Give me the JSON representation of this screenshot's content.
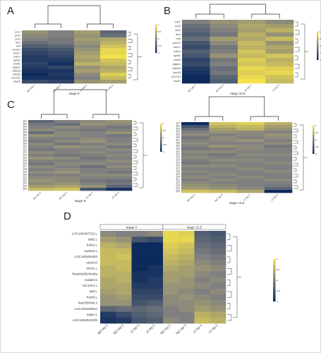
{
  "panels": [
    {
      "id": "A",
      "label": "A",
      "stage": "stage 9",
      "columns": [
        "MZ rep 1",
        "MZ rep 2",
        "rZ rep 1",
        "rZ rep 2"
      ],
      "rows": [
        "pcv1",
        "pcv2",
        "sox3",
        "tbx4",
        "elf4",
        "col18.2",
        "dnr3.1",
        "mdk.b",
        "kpnb1",
        "chrnt1",
        "ptgss1",
        "cdkn2a",
        "ube2l3",
        "LOC101",
        "ube2x"
      ],
      "values": [
        [
          0.2,
          0.0,
          0.3,
          -0.3
        ],
        [
          0.1,
          0.0,
          0.2,
          -0.2
        ],
        [
          0.0,
          -0.1,
          0.3,
          0.4
        ],
        [
          -0.2,
          -0.1,
          0.2,
          0.5
        ],
        [
          -0.4,
          -0.3,
          0.1,
          0.7
        ],
        [
          -0.6,
          -0.5,
          0.2,
          0.9
        ],
        [
          -0.7,
          -0.6,
          0.3,
          0.9
        ],
        [
          -0.8,
          -0.7,
          0.4,
          1.0
        ],
        [
          -0.8,
          -0.8,
          0.3,
          0.7
        ],
        [
          -0.7,
          -0.9,
          0.5,
          0.6
        ],
        [
          -0.8,
          -0.7,
          0.2,
          0.4
        ],
        [
          -0.9,
          -0.9,
          0.3,
          0.5
        ],
        [
          -1.0,
          -0.8,
          0.1,
          0.8
        ],
        [
          -0.9,
          -0.9,
          0.0,
          0.6
        ],
        [
          -0.6,
          -0.7,
          0.2,
          0.3
        ]
      ]
    },
    {
      "id": "B",
      "label": "B",
      "stage": "stage 10.5",
      "columns": [
        "MZ rep 1",
        "MZ rep 2",
        "rZ rep 1",
        "rZ rep 2"
      ],
      "rows": [
        "pcv1",
        "pcv2",
        "sox3",
        "tbx4",
        "elf4",
        "col18.2",
        "dnr3.1",
        "mdk.b",
        "kpnb1",
        "chrnt1",
        "ptgss1",
        "cdkn2a",
        "ube2l3",
        "LOC101",
        "ube2x"
      ],
      "values": [
        [
          0.0,
          0.2,
          0.3,
          0.1
        ],
        [
          -0.2,
          0.1,
          0.4,
          0.3
        ],
        [
          -0.3,
          0.0,
          0.3,
          0.5
        ],
        [
          -0.4,
          -0.1,
          0.5,
          0.2
        ],
        [
          -0.2,
          0.3,
          0.4,
          0.6
        ],
        [
          -0.5,
          0.1,
          0.6,
          0.2
        ],
        [
          -0.6,
          -0.1,
          0.5,
          0.4
        ],
        [
          -0.4,
          0.0,
          0.7,
          0.3
        ],
        [
          -0.5,
          0.2,
          0.6,
          0.7
        ],
        [
          -0.7,
          -0.1,
          0.8,
          0.5
        ],
        [
          -0.6,
          0.0,
          0.7,
          0.6
        ],
        [
          -0.8,
          -0.2,
          0.9,
          0.8
        ],
        [
          -0.9,
          -0.1,
          0.8,
          0.9
        ],
        [
          -1.0,
          -0.3,
          0.9,
          0.7
        ],
        [
          -1.0,
          -0.4,
          1.0,
          0.6
        ]
      ]
    },
    {
      "id": "C1",
      "label": "C",
      "stage": "stage 9",
      "columns": [
        "MZ rep 1",
        "MZ rep 2",
        "rZ rep 1",
        "rZ rep 2"
      ],
      "rows": [
        "g01",
        "g02",
        "g03",
        "g04",
        "g05",
        "g06",
        "g07",
        "g08",
        "g09",
        "g10",
        "g11",
        "g12",
        "g13",
        "g14",
        "g15",
        "g16",
        "g17",
        "g18",
        "g19",
        "g20",
        "g21",
        "g22",
        "g23",
        "g24",
        "g25"
      ],
      "values": [
        [
          -0.3,
          0.0,
          0.1,
          0.2
        ],
        [
          -0.1,
          -0.2,
          0.2,
          0.1
        ],
        [
          0.0,
          0.1,
          0.0,
          -0.1
        ],
        [
          0.1,
          0.0,
          -0.1,
          0.0
        ],
        [
          -0.2,
          0.1,
          0.0,
          0.2
        ],
        [
          0.2,
          0.1,
          0.0,
          -0.1
        ],
        [
          0.0,
          0.0,
          0.1,
          0.0
        ],
        [
          -0.1,
          0.1,
          0.2,
          0.0
        ],
        [
          0.1,
          -0.1,
          0.0,
          0.1
        ],
        [
          0.0,
          0.2,
          0.1,
          -0.1
        ],
        [
          -0.1,
          0.0,
          0.0,
          0.1
        ],
        [
          0.1,
          0.0,
          0.1,
          0.0
        ],
        [
          0.0,
          -0.1,
          0.0,
          0.1
        ],
        [
          0.2,
          0.1,
          -0.1,
          0.0
        ],
        [
          0.0,
          0.0,
          0.0,
          0.1
        ],
        [
          -0.1,
          0.1,
          0.1,
          0.0
        ],
        [
          0.1,
          0.0,
          -0.2,
          0.1
        ],
        [
          0.0,
          0.1,
          0.0,
          0.0
        ],
        [
          0.1,
          0.2,
          0.0,
          -0.1
        ],
        [
          0.0,
          0.0,
          0.1,
          0.1
        ],
        [
          0.1,
          0.1,
          0.0,
          0.0
        ],
        [
          0.2,
          0.1,
          -0.1,
          -0.2
        ],
        [
          0.1,
          0.2,
          0.0,
          -0.1
        ],
        [
          0.3,
          0.4,
          0.2,
          -0.3
        ],
        [
          0.6,
          0.7,
          -0.5,
          -0.9
        ]
      ]
    },
    {
      "id": "C2",
      "label": "",
      "stage": "stage 10.5",
      "columns": [
        "MZ rep 1",
        "MZ rep 2",
        "rZ rep 1",
        "rZ rep 2"
      ],
      "rows": [
        "g01",
        "g02",
        "g03",
        "g04",
        "g05",
        "g06",
        "g07",
        "g08",
        "g09",
        "g10",
        "g11",
        "g12",
        "g13",
        "g14",
        "g15",
        "g16",
        "g17",
        "g18",
        "g19",
        "g20",
        "g21",
        "g22",
        "g23",
        "g24",
        "g25"
      ],
      "values": [
        [
          -1.0,
          0.7,
          0.8,
          0.5
        ],
        [
          -0.5,
          0.5,
          0.6,
          0.3
        ],
        [
          -0.2,
          0.3,
          0.5,
          0.2
        ],
        [
          0.0,
          0.2,
          0.1,
          0.0
        ],
        [
          0.1,
          0.0,
          0.1,
          0.2
        ],
        [
          -0.1,
          0.1,
          0.0,
          0.1
        ],
        [
          0.0,
          0.1,
          0.2,
          0.0
        ],
        [
          0.1,
          0.0,
          0.0,
          0.1
        ],
        [
          0.0,
          0.2,
          0.1,
          -0.1
        ],
        [
          -0.1,
          0.0,
          0.1,
          0.0
        ],
        [
          0.1,
          0.1,
          0.0,
          0.0
        ],
        [
          0.0,
          -0.1,
          0.1,
          0.1
        ],
        [
          0.1,
          0.0,
          0.0,
          0.0
        ],
        [
          0.0,
          0.1,
          0.1,
          0.0
        ],
        [
          -0.1,
          0.0,
          0.0,
          0.1
        ],
        [
          0.1,
          0.1,
          0.0,
          0.0
        ],
        [
          0.0,
          0.0,
          0.1,
          0.0
        ],
        [
          0.1,
          0.0,
          0.0,
          0.1
        ],
        [
          0.0,
          0.1,
          0.0,
          0.0
        ],
        [
          0.1,
          0.0,
          0.1,
          0.0
        ],
        [
          0.0,
          0.1,
          0.0,
          0.1
        ],
        [
          0.1,
          0.0,
          0.0,
          0.0
        ],
        [
          0.2,
          0.1,
          0.0,
          -0.1
        ],
        [
          0.3,
          0.2,
          0.1,
          -0.3
        ],
        [
          0.7,
          0.6,
          0.4,
          -1.0
        ]
      ]
    },
    {
      "id": "D",
      "label": "D",
      "stages": [
        "stage 9",
        "stage 10.5"
      ],
      "columns": [
        "MZ rep 1",
        "MZ rep 2",
        "rZ rep 1",
        "rZ rep 2",
        "MZ rep 1",
        "MZ rep 2",
        "rZ rep 1",
        "rZ rep 2"
      ],
      "rows": [
        "LOC100497722.L",
        "sall1.L",
        "foxh1.L",
        "ncpb2a.L",
        "LOC100491003",
        "otx1b.S",
        "dmrt1.L",
        "foxa4/sall1/wnt3a",
        "nodal3.S",
        "Xnr1/2/4.L",
        "sp5.L",
        "foxd3.L",
        "hes/1/b/ckb.2",
        "LOC100493944",
        "mpp1.L",
        "LOC100491003b"
      ],
      "values": [
        [
          0.1,
          0.0,
          0.0,
          0.1,
          0.9,
          0.8,
          -0.4,
          -0.5
        ],
        [
          0.3,
          0.2,
          -0.5,
          -0.6,
          0.9,
          0.9,
          -0.3,
          -0.4
        ],
        [
          0.5,
          0.4,
          -1.0,
          -1.0,
          0.8,
          0.7,
          -0.2,
          -0.3
        ],
        [
          0.6,
          0.6,
          -1.0,
          -1.0,
          0.7,
          0.6,
          -0.1,
          -0.2
        ],
        [
          0.6,
          0.7,
          -1.0,
          -1.0,
          0.6,
          0.5,
          0.0,
          -0.1
        ],
        [
          0.6,
          0.6,
          -1.0,
          -1.0,
          0.5,
          0.4,
          0.1,
          0.0
        ],
        [
          0.5,
          0.6,
          -1.0,
          -0.9,
          0.4,
          0.3,
          0.2,
          0.1
        ],
        [
          0.5,
          0.5,
          -0.9,
          -0.9,
          0.3,
          0.3,
          0.1,
          0.0
        ],
        [
          0.4,
          0.5,
          -0.9,
          -0.8,
          0.3,
          0.2,
          0.0,
          0.1
        ],
        [
          0.4,
          0.4,
          -0.8,
          -0.8,
          0.2,
          0.2,
          0.1,
          0.0
        ],
        [
          0.3,
          0.4,
          -0.7,
          -0.7,
          0.2,
          0.1,
          0.0,
          0.1
        ],
        [
          0.2,
          0.3,
          -0.6,
          -0.6,
          0.1,
          0.2,
          0.1,
          0.0
        ],
        [
          0.2,
          0.2,
          -0.5,
          -0.4,
          0.1,
          0.1,
          0.2,
          0.1
        ],
        [
          -0.3,
          -0.2,
          -0.3,
          -0.2,
          0.0,
          0.1,
          0.3,
          0.2
        ],
        [
          -0.8,
          -0.6,
          -0.4,
          -0.3,
          0.0,
          0.0,
          0.5,
          0.4
        ],
        [
          -0.9,
          -0.8,
          -0.5,
          -0.4,
          0.1,
          0.0,
          0.6,
          0.5
        ]
      ]
    }
  ],
  "legend": {
    "ticks_small": [
      "1",
      "0.5",
      "0",
      "-0.5",
      "-1"
    ],
    "ticks_D": [
      "1",
      "0.5",
      "0",
      "-0.5",
      "-1"
    ]
  },
  "colors": {
    "low": "#0c2a5c",
    "mid": "#808080",
    "high": "#f4e14c"
  }
}
